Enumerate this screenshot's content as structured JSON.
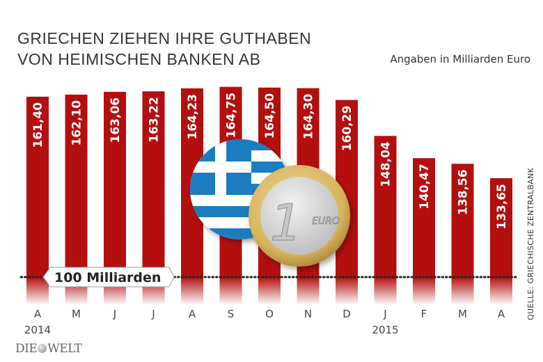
{
  "title_lines": [
    "GRIECHEN ZIEHEN IHRE GUTHABEN",
    "VON HEIMISCHEN BANKEN AB"
  ],
  "subtitle": "Angaben in Milliarden Euro",
  "source": "QUELLE: GRIECHISCHE ZENTRALBANK",
  "logo": "DIE WELT",
  "colors": {
    "bar": "#b30f0f",
    "flag_blue": "#1e7cc0",
    "text": "#333333"
  },
  "chart_data": {
    "type": "bar",
    "categories": [
      "A",
      "M",
      "J",
      "J",
      "A",
      "S",
      "O",
      "N",
      "D",
      "J",
      "F",
      "M",
      "A"
    ],
    "year_labels": [
      {
        "index": 0,
        "label": "2014"
      },
      {
        "index": 9,
        "label": "2015"
      }
    ],
    "values": [
      161.4,
      162.1,
      163.06,
      163.22,
      164.23,
      164.75,
      164.5,
      164.3,
      160.29,
      148.04,
      140.47,
      138.56,
      133.65
    ],
    "value_labels": [
      "161,40",
      "162,10",
      "163,06",
      "163,22",
      "164,23",
      "164,75",
      "164,50",
      "164,30",
      "160,29",
      "148,04",
      "140,47",
      "138,56",
      "133,65"
    ],
    "reference_line": {
      "value": 100,
      "label": "100 Milliarden"
    },
    "unit": "Milliarden Euro",
    "illustration": [
      "greek-flag",
      "one-euro-coin"
    ],
    "coin_text": {
      "numeral": "1",
      "word": "EURO"
    }
  }
}
